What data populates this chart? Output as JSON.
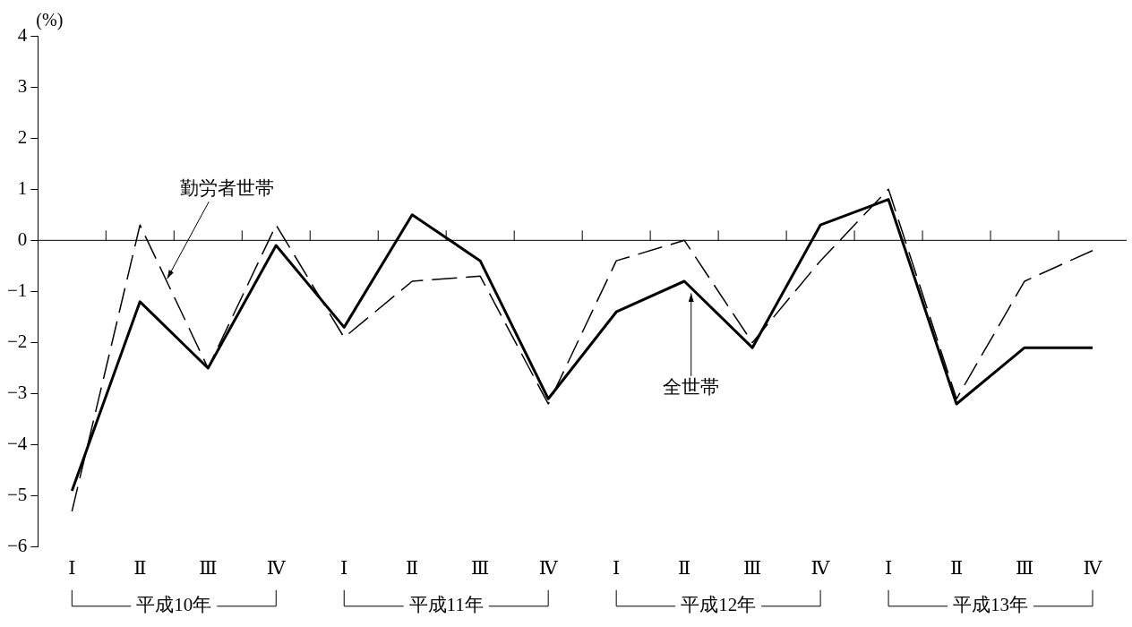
{
  "chart_data": {
    "type": "line",
    "ylabel": "(%)",
    "categories": [
      "Ⅰ",
      "Ⅱ",
      "Ⅲ",
      "Ⅳ",
      "Ⅰ",
      "Ⅱ",
      "Ⅲ",
      "Ⅳ",
      "Ⅰ",
      "Ⅱ",
      "Ⅲ",
      "Ⅳ",
      "Ⅰ",
      "Ⅱ",
      "Ⅲ",
      "Ⅳ"
    ],
    "series": [
      {
        "name": "全世帯",
        "color": "#000000",
        "line_style": "solid",
        "values": [
          -4.9,
          -1.2,
          -2.5,
          -0.1,
          -1.7,
          0.5,
          -0.4,
          -3.1,
          -1.4,
          -0.8,
          -2.1,
          0.3,
          0.8,
          -3.2,
          -2.1,
          -2.1
        ]
      },
      {
        "name": "勤労者世帯",
        "color": "#000000",
        "line_style": "dashed",
        "values": [
          -5.3,
          0.3,
          -2.5,
          0.3,
          -1.9,
          -0.8,
          -0.7,
          -3.2,
          -0.4,
          0.0,
          -2.0,
          -0.4,
          1.0,
          -3.1,
          -0.8,
          -0.2
        ]
      }
    ],
    "ylim": [
      -6,
      4
    ],
    "yticks": [
      -6,
      -5,
      -4,
      -3,
      -2,
      -1,
      0,
      1,
      2,
      3,
      4
    ],
    "ref_lines": [
      {
        "axis": "y",
        "value": 0
      }
    ],
    "annotations": [
      "平成10年",
      "平成11年",
      "平成12年",
      "平成13年"
    ],
    "grid": false,
    "legend": false,
    "marker": "none"
  }
}
